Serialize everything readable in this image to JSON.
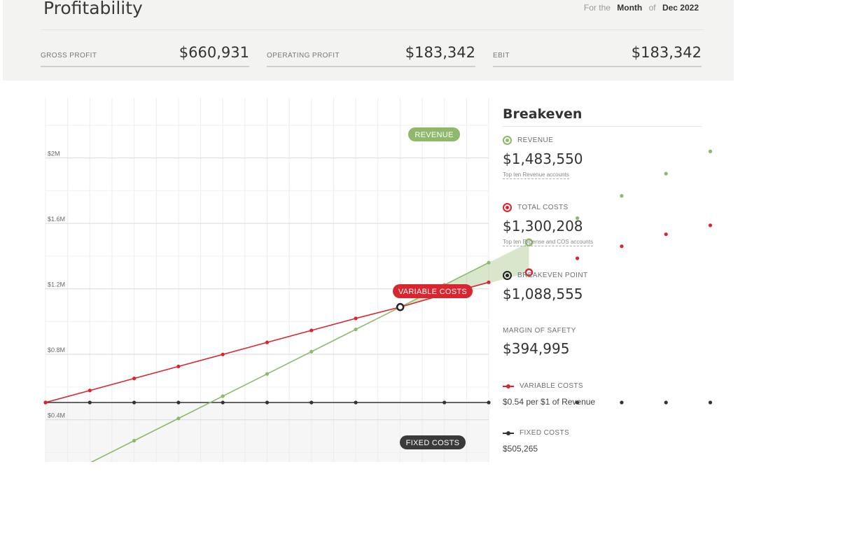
{
  "header": {
    "title": "Profitability",
    "period_prefix": "For the",
    "period_unit": "Month",
    "period_of": "of",
    "period_value": "Dec 2022"
  },
  "metrics": [
    {
      "label": "GROSS PROFIT",
      "value": "$660,931"
    },
    {
      "label": "OPERATING PROFIT",
      "value": "$183,342"
    },
    {
      "label": "EBIT",
      "value": "$183,342"
    }
  ],
  "chart_data": {
    "type": "line",
    "title": "",
    "xlabel": "",
    "ylabel": "",
    "y_tick_labels": [
      "$2M",
      "$1.6M",
      "$1.2M",
      "$0.8M",
      "$0.4M"
    ],
    "y_ticks": [
      2000000,
      1600000,
      1200000,
      800000,
      400000
    ],
    "ylim": [
      150000,
      2400000
    ],
    "x_revenue": [
      0,
      136000,
      272000,
      408000,
      544000,
      680000,
      816000,
      952000,
      1088555,
      1224000,
      1360000,
      1483550,
      1632000,
      1768000,
      1904000,
      2040000
    ],
    "series": [
      {
        "name": "REVENUE",
        "color": "#8fb86a",
        "values": [
          0,
          136000,
          272000,
          408000,
          544000,
          680000,
          816000,
          952000,
          1088555,
          1224000,
          1360000,
          1483550,
          1632000,
          1768000,
          1904000,
          2040000
        ]
      },
      {
        "name": "VARIABLE COSTS",
        "color": "#d9252f",
        "values": [
          505265,
          578700,
          652200,
          725600,
          799000,
          872500,
          945900,
          1019300,
          1088555,
          1166200,
          1239700,
          1300208,
          1386500,
          1460000,
          1533400,
          1588000
        ]
      },
      {
        "name": "FIXED COSTS",
        "color": "#333333",
        "values": [
          505265,
          505265,
          505265,
          505265,
          505265,
          505265,
          505265,
          505265,
          505265,
          505265,
          505265,
          505265,
          505265,
          505265,
          505265,
          505265
        ]
      }
    ],
    "highlights": {
      "breakeven": {
        "x": 1088555,
        "y": 1088555
      },
      "revenue_point": {
        "x": 1483550,
        "y": 1483550
      },
      "cost_point": {
        "x": 1483550,
        "y": 1300208
      }
    },
    "grid": true,
    "legend": "inline-pills"
  },
  "colors": {
    "revenue": "#8fb86a",
    "costs": "#d9252f",
    "fixed": "#333333",
    "breakeven": "#222222"
  },
  "side": {
    "title": "Breakeven",
    "revenue_label": "REVENUE",
    "revenue_value": "$1,483,550",
    "revenue_link": "Top ten Revenue accounts",
    "costs_label": "TOTAL COSTS",
    "costs_value": "$1,300,208",
    "costs_link": "Top ten Expense and COS accounts",
    "breakeven_label": "BREAKEVEN POINT",
    "breakeven_value": "$1,088,555",
    "margin_label": "MARGIN OF SAFETY",
    "margin_value": "$394,995",
    "variable_label": "VARIABLE COSTS",
    "variable_desc": "$0.54 per $1 of Revenue",
    "fixed_label": "FIXED COSTS",
    "fixed_desc": "$505,265"
  }
}
